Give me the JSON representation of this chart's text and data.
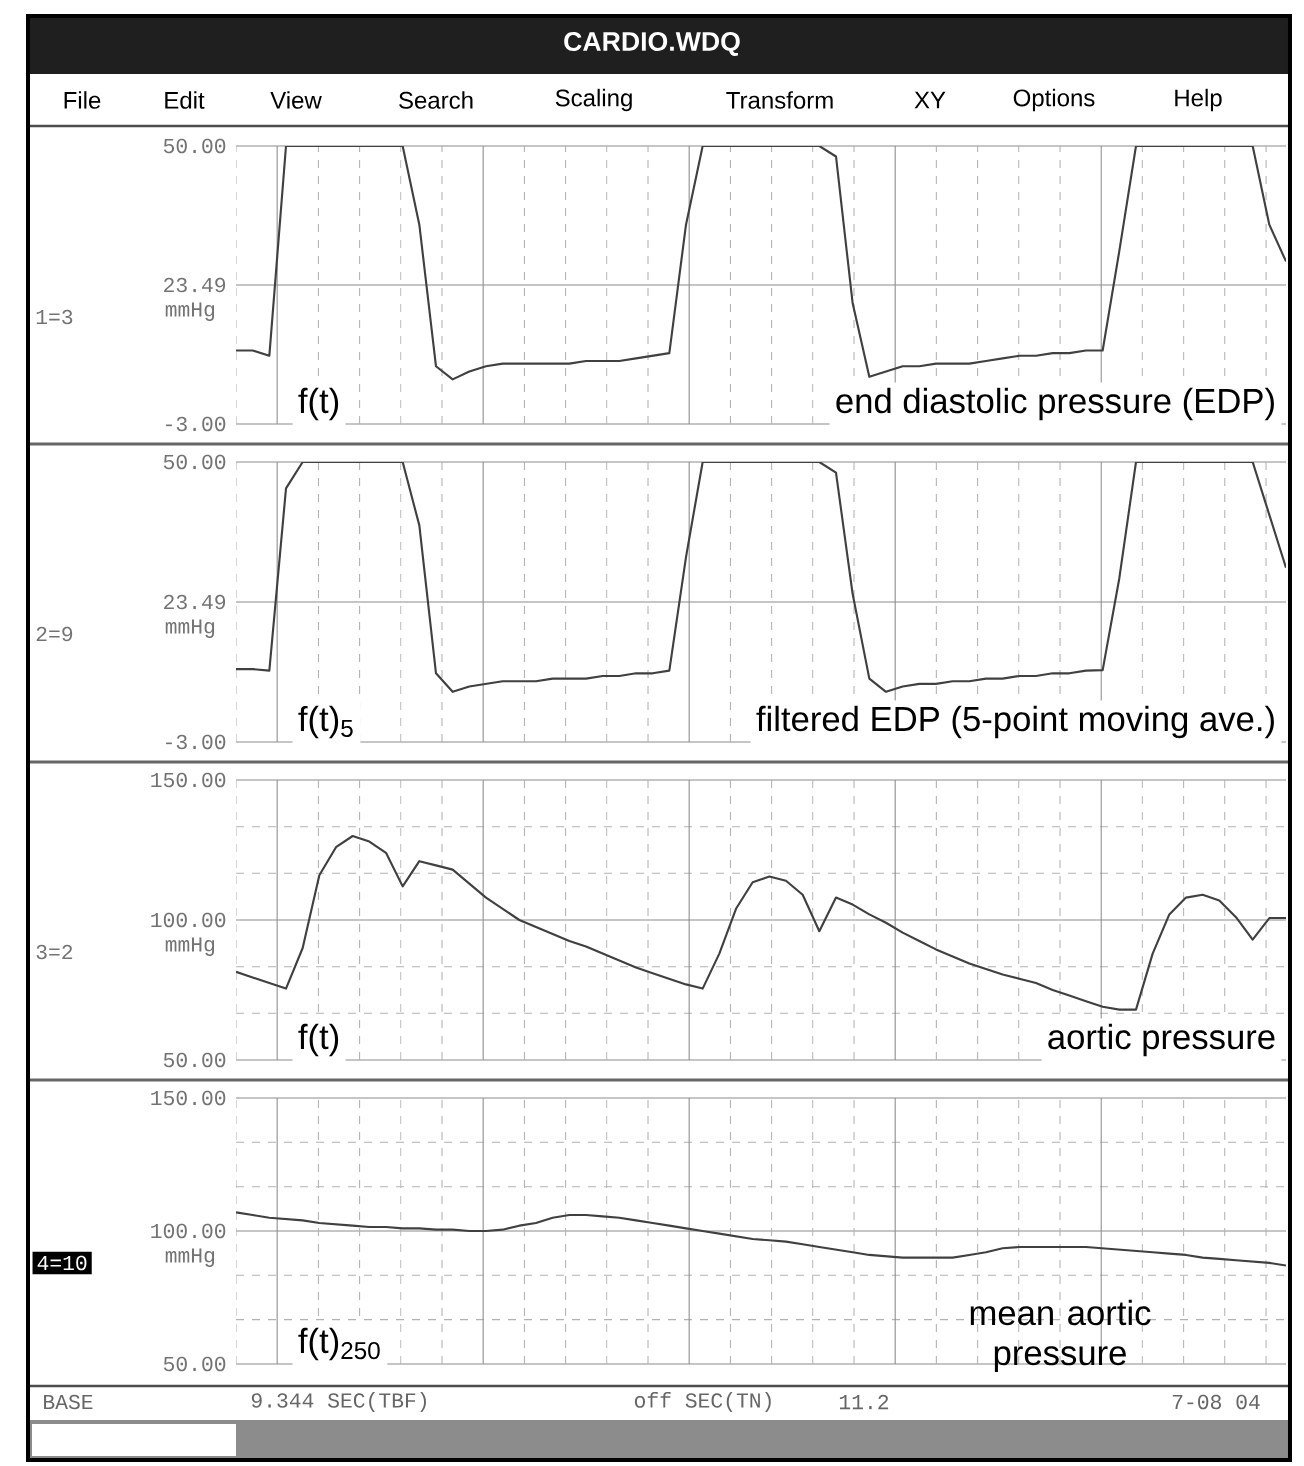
{
  "chart_data": [
    {
      "type": "line",
      "title": "CARDIO.WDQ",
      "ylabel": "mmHg",
      "grid": true,
      "color": "#404040",
      "categories": [
        null,
        null,
        null,
        null,
        null,
        null,
        null,
        null,
        null,
        null,
        null,
        null,
        null,
        null,
        null,
        null,
        null,
        null,
        null,
        null,
        null,
        null,
        null,
        null,
        null,
        null,
        null,
        null,
        null,
        null,
        null,
        null,
        null,
        null,
        null,
        null,
        null,
        null,
        null,
        null,
        null,
        null,
        null,
        null,
        null,
        null,
        null,
        null,
        null,
        null,
        null,
        null,
        null,
        null,
        null,
        null,
        null,
        null,
        null,
        null,
        null,
        null,
        null,
        null
      ],
      "values": [
        11,
        11,
        10,
        50,
        50,
        50,
        50,
        50,
        50,
        50,
        50,
        35,
        8,
        5.5,
        7,
        8,
        8.5,
        8.5,
        8.5,
        8.5,
        8.5,
        9,
        9,
        9,
        9.5,
        10,
        10.5,
        35,
        50,
        50,
        50,
        50,
        50,
        50,
        50,
        50,
        48,
        20,
        6,
        7,
        8,
        8,
        8.5,
        8.5,
        8.5,
        9,
        9.5,
        10,
        10,
        10.5,
        10.5,
        11,
        11,
        30,
        50,
        50,
        50,
        50,
        50,
        50,
        50,
        50,
        35,
        28
      ],
      "ylim": [
        -3,
        50
      ],
      "yticks": [
        {
          "value": -3,
          "label": "-3.00"
        },
        {
          "value": 23.49,
          "label": "23.49"
        },
        {
          "value": 50,
          "label": "50.00"
        }
      ],
      "annotations": [
        "1=3",
        "f(t)",
        "end diastolic pressure (EDP)",
        "File",
        "Edit",
        "View",
        "Search",
        "Scaling",
        "Transform",
        "XY",
        "Options",
        "Help"
      ]
    },
    {
      "type": "line",
      "ylabel": "mmHg",
      "grid": true,
      "color": "#404040",
      "categories": [
        null,
        null,
        null,
        null,
        null,
        null,
        null,
        null,
        null,
        null,
        null,
        null,
        null,
        null,
        null,
        null,
        null,
        null,
        null,
        null,
        null,
        null,
        null,
        null,
        null,
        null,
        null,
        null,
        null,
        null,
        null,
        null,
        null,
        null,
        null,
        null,
        null,
        null,
        null,
        null,
        null,
        null,
        null,
        null,
        null,
        null,
        null,
        null,
        null,
        null,
        null,
        null,
        null,
        null,
        null,
        null,
        null,
        null,
        null,
        null,
        null,
        null,
        null,
        null
      ],
      "values": [
        10.8,
        10.8,
        10.5,
        45,
        50,
        50,
        50,
        50,
        50,
        50,
        50,
        38,
        10,
        6.5,
        7.5,
        8,
        8.5,
        8.5,
        8.5,
        9,
        9,
        9,
        9.5,
        9.5,
        10,
        10,
        10.5,
        32,
        50,
        50,
        50,
        50,
        50,
        50,
        50,
        50,
        48,
        25,
        9,
        6.5,
        7.5,
        8,
        8,
        8.5,
        8.5,
        9,
        9,
        9.5,
        9.5,
        10,
        10,
        10.5,
        10.6,
        28,
        50,
        50,
        50,
        50,
        50,
        50,
        50,
        50,
        40,
        30
      ],
      "ylim": [
        -3,
        50
      ],
      "yticks": [
        {
          "value": -3,
          "label": "-3.00"
        },
        {
          "value": 23.49,
          "label": "23.49"
        },
        {
          "value": 50,
          "label": "50.00"
        }
      ],
      "annotations": [
        "2=9",
        "f(t)$_{5}$",
        "filtered EDP (5-point moving ave.)"
      ]
    },
    {
      "type": "line",
      "ylabel": "mmHg",
      "grid": true,
      "color": "#404040",
      "categories": [
        null,
        null,
        null,
        null,
        null,
        null,
        null,
        null,
        null,
        null,
        null,
        null,
        null,
        null,
        null,
        null,
        null,
        null,
        null,
        null,
        null,
        null,
        null,
        null,
        null,
        null,
        null,
        null,
        null,
        null,
        null,
        null,
        null,
        null,
        null,
        null,
        null,
        null,
        null,
        null,
        null,
        null,
        null,
        null,
        null,
        null,
        null,
        null,
        null,
        null,
        null,
        null,
        null,
        null,
        null,
        null,
        null,
        null,
        null,
        null,
        null,
        null,
        null,
        null
      ],
      "values": [
        81.5,
        79.5,
        77.5,
        75.5,
        90,
        116,
        126,
        130,
        128,
        124,
        112,
        121,
        119.5,
        118,
        113,
        108,
        104,
        100,
        97.5,
        95,
        92.5,
        90.5,
        88,
        85.5,
        83,
        81,
        79,
        77,
        75.5,
        88,
        104,
        113.5,
        115.5,
        114,
        109,
        96,
        108,
        105.5,
        102,
        99,
        95.5,
        92.5,
        89.5,
        87,
        84.5,
        82.5,
        80.5,
        79,
        77.5,
        75,
        73,
        71,
        69,
        68,
        68,
        88,
        102,
        108,
        109,
        107,
        101,
        93,
        100.7,
        100.7
      ],
      "ylim": [
        50,
        150
      ],
      "yticks": [
        {
          "value": 50,
          "label": "50.00"
        },
        {
          "value": 100,
          "label": "100.00"
        },
        {
          "value": 150,
          "label": "150.00"
        }
      ],
      "annotations": [
        "3=2",
        "f(t)",
        "aortic pressure"
      ]
    },
    {
      "type": "line",
      "ylabel": "mmHg",
      "grid": true,
      "color": "#404040",
      "categories": [
        null,
        null,
        null,
        null,
        null,
        null,
        null,
        null,
        null,
        null,
        null,
        null,
        null,
        null,
        null,
        null,
        null,
        null,
        null,
        null,
        null,
        null,
        null,
        null,
        null,
        null,
        null,
        null,
        null,
        null,
        null,
        null,
        null,
        null,
        null,
        null,
        null,
        null,
        null,
        null,
        null,
        null,
        null,
        null,
        null,
        null,
        null,
        null,
        null,
        null,
        null,
        null,
        null,
        null,
        null,
        null,
        null,
        null,
        null,
        null,
        null,
        null,
        null,
        null
      ],
      "values": [
        107,
        106,
        105,
        104.5,
        104,
        103,
        102.5,
        102,
        101.5,
        101.5,
        101,
        101,
        100.5,
        100.5,
        100,
        100,
        100.5,
        102,
        103,
        105,
        106,
        106,
        105.5,
        105,
        104,
        103,
        102,
        101,
        100,
        99,
        98,
        97,
        96.5,
        96,
        95,
        94,
        93,
        92,
        91,
        90.5,
        90,
        90,
        90,
        90,
        91,
        92,
        93.5,
        94,
        94,
        94,
        94,
        94,
        93.5,
        93,
        92.5,
        92,
        91.5,
        91,
        90,
        89.5,
        89,
        88.5,
        88,
        87
      ],
      "ylim": [
        50,
        150
      ],
      "yticks": [
        {
          "value": 50,
          "label": "50.00"
        },
        {
          "value": 100,
          "label": "100.00"
        },
        {
          "value": 150,
          "label": "150.00"
        }
      ],
      "annotations": [
        "4=10",
        "f(t)$_{250}$",
        "mean aortic pressure",
        "BASE",
        "9.344 SEC(TBF)",
        "off SEC(TN)",
        "11.2",
        "7-08 04"
      ]
    }
  ]
}
